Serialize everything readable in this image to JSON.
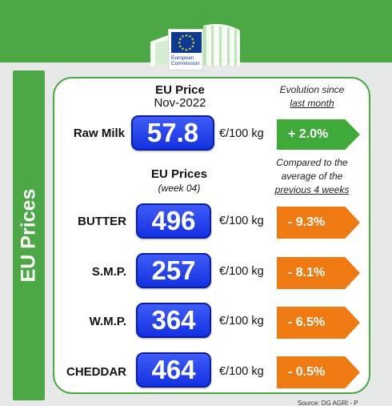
{
  "header": {
    "logo_text": "European Commission"
  },
  "sidebar": {
    "title": "EU Prices"
  },
  "raw_milk": {
    "title": "EU Price",
    "period": "Nov-2022",
    "evolution_label_1": "Evolution since",
    "evolution_label_2": "last month",
    "name": "Raw Milk",
    "value": "57.8",
    "unit": "€/100 kg",
    "change": "+ 2.0%"
  },
  "products_header": {
    "title": "EU Prices",
    "week": "(week 04)",
    "note_1": "Compared to the",
    "note_2": "average of the",
    "note_3": "previous 4 weeks"
  },
  "products": [
    {
      "name": "BUTTER",
      "value": "496",
      "unit": "€/100 kg",
      "change": "- 9.3%"
    },
    {
      "name": "S.M.P.",
      "value": "257",
      "unit": "€/100 kg",
      "change": "- 8.1%"
    },
    {
      "name": "W.M.P.",
      "value": "364",
      "unit": "€/100 kg",
      "change": "- 6.5%"
    },
    {
      "name": "CHEDDAR",
      "value": "464",
      "unit": "€/100 kg",
      "change": "- 0.5%"
    }
  ],
  "source": "Source: DG AGRI - P",
  "colors": {
    "green": "#4ca844",
    "blue": "#1f3ff0",
    "orange": "#ef7a11"
  }
}
